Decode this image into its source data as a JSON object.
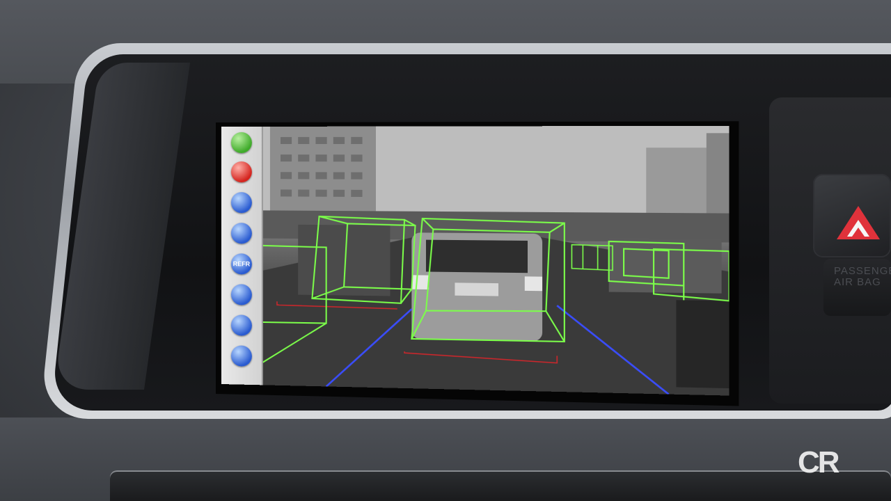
{
  "scene": {
    "description_free": true
  },
  "dashboard": {
    "airbag_text": "PASSENGER\nAIR BAG"
  },
  "sidebar": {
    "buttons": [
      {
        "icon": "play-icon",
        "color": "green",
        "label": ""
      },
      {
        "icon": "power-icon",
        "color": "red",
        "label": ""
      },
      {
        "icon": "home-icon",
        "color": "blue",
        "label": ""
      },
      {
        "icon": "blue-round-icon",
        "color": "blue",
        "label": ""
      },
      {
        "icon": "refresh-icon",
        "color": "blue",
        "label": "REFR"
      },
      {
        "icon": "zoom-in-icon",
        "color": "blue",
        "label": ""
      },
      {
        "icon": "zoom-out-icon",
        "color": "blue",
        "label": ""
      },
      {
        "icon": "move-icon",
        "color": "blue",
        "label": ""
      }
    ]
  },
  "overlay_colors": {
    "box": "#7cff4a",
    "lane": "#3a4dff",
    "ground": "#d0262b"
  },
  "watermark": {
    "text": "CR"
  }
}
